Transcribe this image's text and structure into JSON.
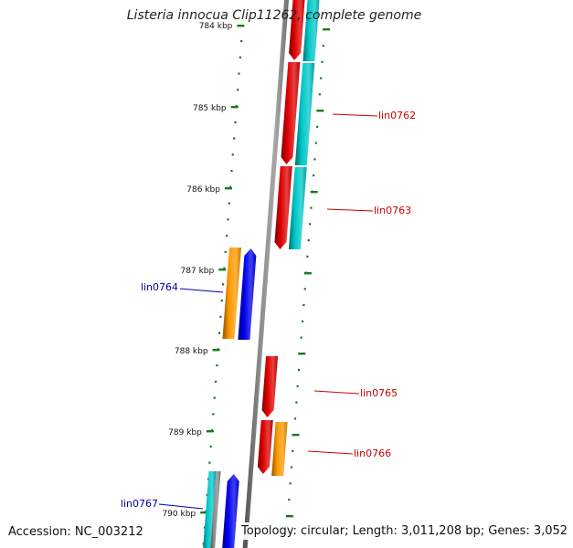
{
  "title": "Listeria innocua Clip11262, complete genome",
  "footer": {
    "accession": "Accession: NC_003212",
    "summary": "Topology: circular; Length: 3,011,208 bp; Genes: 3,052"
  },
  "colors": {
    "backbone": "#8a8a8a",
    "tick": "#1a7a1a",
    "red": "#e00000",
    "cyan": "#00c8c8",
    "orange": "#ff9900",
    "blue": "#0000ee",
    "label_red": "#cc0000",
    "label_blue": "#0000aa"
  },
  "ticks": {
    "major_labels": [
      "784 kbp",
      "785 kbp",
      "786 kbp",
      "787 kbp",
      "788 kbp",
      "789 kbp",
      "790 kbp"
    ]
  },
  "genes": [
    {
      "name": "lin0762",
      "color": "red",
      "strand": "right"
    },
    {
      "name": "lin0763",
      "color": "red",
      "strand": "right"
    },
    {
      "name": "lin0764",
      "color": "blue",
      "strand": "left"
    },
    {
      "name": "lin0765",
      "color": "red",
      "strand": "right"
    },
    {
      "name": "lin0766",
      "color": "red",
      "strand": "right"
    },
    {
      "name": "lin0767",
      "color": "blue",
      "strand": "left"
    }
  ]
}
